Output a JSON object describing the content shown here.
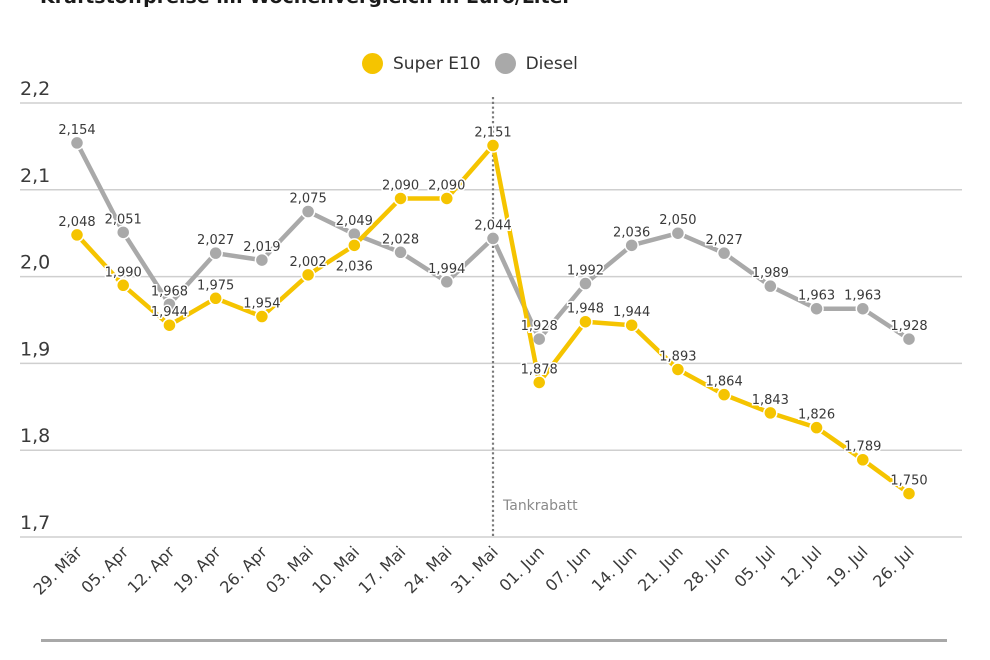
{
  "title": "Kraftstoffpreise im Wochenvergleich in Euro/Liter",
  "chart_data": {
    "type": "line",
    "title": "Kraftstoffpreise im Wochenvergleich in Euro/Liter",
    "xlabel": "",
    "ylabel": "",
    "ylim": [
      1.7,
      2.2
    ],
    "yticks": [
      {
        "value": 2.2,
        "label": "2,2"
      },
      {
        "value": 2.1,
        "label": "2,1"
      },
      {
        "value": 2.0,
        "label": "2,0"
      },
      {
        "value": 1.9,
        "label": "1,9"
      },
      {
        "value": 1.8,
        "label": "1,8"
      },
      {
        "value": 1.7,
        "label": "1,7"
      }
    ],
    "grid": true,
    "legend_position": "top-center",
    "categories": [
      "29. Mär",
      "05. Apr",
      "12. Apr",
      "19. Apr",
      "26. Apr",
      "03. Mai",
      "10. Mai",
      "17. Mai",
      "24. Mai",
      "31. Mai",
      "01. Jun",
      "07. Jun",
      "14. Jun",
      "21. Jun",
      "28. Jun",
      "05. Jul",
      "12. Jul",
      "19. Jul",
      "26. Jul"
    ],
    "series": [
      {
        "name": "Super E10",
        "color": "#f5c400",
        "values": [
          2.048,
          1.99,
          1.944,
          1.975,
          1.954,
          2.002,
          2.036,
          2.09,
          2.09,
          2.151,
          1.878,
          1.948,
          1.944,
          1.893,
          1.864,
          1.843,
          1.826,
          1.789,
          1.75
        ],
        "labels": [
          "2,048",
          "1,990",
          "1,944",
          "1,975",
          "1,954",
          "2,002",
          "2,036",
          "2,090",
          "2,090",
          "2,151",
          "1,878",
          "1,948",
          "1,944",
          "1,893",
          "1,864",
          "1,843",
          "1,826",
          "1,789",
          "1,750"
        ],
        "label_pos": [
          "above",
          "above",
          "above",
          "above",
          "above",
          "above",
          "below",
          "above",
          "above",
          "above",
          "above",
          "above",
          "above",
          "above",
          "above",
          "above",
          "above",
          "above",
          "above"
        ]
      },
      {
        "name": "Diesel",
        "color": "#a9a9a9",
        "values": [
          2.154,
          2.051,
          1.968,
          2.027,
          2.019,
          2.075,
          2.049,
          2.028,
          1.994,
          2.044,
          1.928,
          1.992,
          2.036,
          2.05,
          2.027,
          1.989,
          1.963,
          1.963,
          1.928
        ],
        "labels": [
          "2,154",
          "2,051",
          "1,968",
          "2,027",
          "2,019",
          "2,075",
          "2,049",
          "2,028",
          "1,994",
          "2,044",
          "1,928",
          "1,992",
          "2,036",
          "2,050",
          "2,027",
          "1,989",
          "1,963",
          "1,963",
          "1,928"
        ],
        "label_pos": [
          "above",
          "above",
          "above",
          "above",
          "above",
          "above",
          "above",
          "above",
          "above",
          "above",
          "above",
          "above",
          "above",
          "above",
          "above",
          "above",
          "above",
          "above",
          "above"
        ]
      }
    ],
    "annotations": [
      {
        "type": "vline",
        "category": "31. Mai",
        "label": "Tankrabatt",
        "style": "dotted"
      }
    ]
  },
  "colors": {
    "grid": "#cfcfcf",
    "text": "#3a3a3a",
    "annotation": "#8a8a8a"
  }
}
